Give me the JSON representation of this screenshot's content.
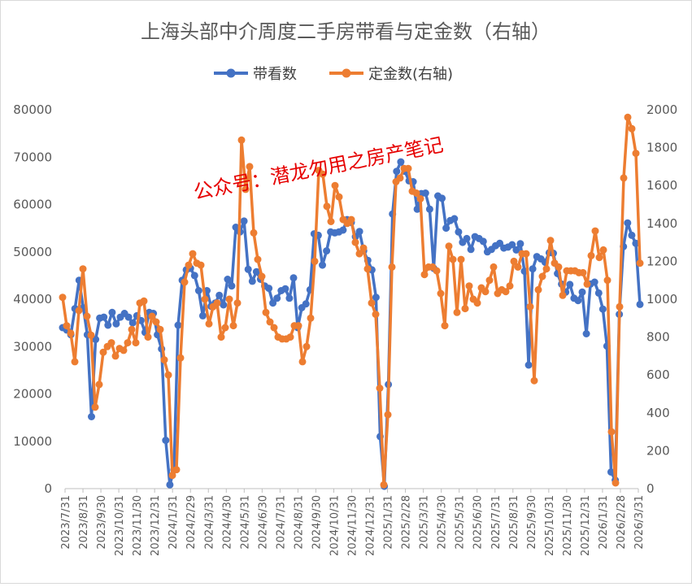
{
  "chart_data": {
    "type": "line",
    "title": "上海头部中介周度二手房带看与定金数（右轴）",
    "watermark": "公众号：潜龙勿用之房产笔记",
    "legend_position": "top",
    "grid": false,
    "y_left": {
      "min": 0,
      "max": 80000,
      "step": 10000
    },
    "y_right": {
      "min": 0,
      "max": 2000,
      "step": 200
    },
    "x_tick_labels": [
      "2023/7/31",
      "2023/8/31",
      "2023/9/30",
      "2023/10/31",
      "2023/11/30",
      "2023/12/31",
      "2024/1/31",
      "2024/2/29",
      "2024/3/31",
      "2024/4/30",
      "2024/5/31",
      "2024/6/30",
      "2024/7/31",
      "2024/8/31",
      "2024/9/30",
      "2024/10/31",
      "2024/11/30",
      "2024/12/31",
      "2025/1/31",
      "2025/2/28",
      "2025/3/31",
      "2025/4/30",
      "2025/5/31",
      "2025/6/30",
      "2025/7/31",
      "2025/8/31",
      "2025/9/30",
      "2025/10/31",
      "2025/11/30",
      "2025/12/31",
      "2026/1/31",
      "2026/2/28",
      "2026/3/31"
    ],
    "series": [
      {
        "name": "带看数",
        "axis": "left",
        "color": "#4472C4",
        "values": [
          34000,
          33500,
          32500,
          38000,
          44000,
          38200,
          32500,
          15200,
          31500,
          36000,
          36200,
          34500,
          37200,
          34800,
          36200,
          37000,
          36200,
          35000,
          36500,
          35500,
          33000,
          37200,
          37000,
          32500,
          29500,
          10200,
          800,
          4000,
          34500,
          44000,
          46200,
          46500,
          45000,
          41800,
          36500,
          41800,
          38500,
          39200,
          40800,
          38800,
          44200,
          42800,
          55200,
          54200,
          56500,
          46300,
          43800,
          45800,
          44200,
          42800,
          42300,
          39200,
          40200,
          41800,
          42200,
          40200,
          44500,
          34000,
          38200,
          39000,
          42000,
          53800,
          53500,
          47200,
          50200,
          54200,
          54000,
          54200,
          54600,
          56800,
          56200,
          53200,
          54300,
          50200,
          48200,
          46200,
          40400,
          11000,
          500,
          22000,
          58000,
          67000,
          69000,
          67000,
          65000,
          64800,
          59000,
          62300,
          62400,
          59000,
          46500,
          61800,
          61300,
          55000,
          56600,
          57000,
          54200,
          52000,
          52800,
          50500,
          53200,
          52800,
          52200,
          50000,
          50500,
          51300,
          51800,
          50800,
          51000,
          51500,
          50400,
          51700,
          45900,
          26100,
          46400,
          49000,
          48500,
          47800,
          49800,
          49700,
          45400,
          43200,
          41500,
          43100,
          40200,
          39700,
          41500,
          32700,
          43200,
          43600,
          41300,
          37900,
          30100,
          3500,
          1800,
          36800,
          51100,
          56100,
          53500,
          51800,
          38900
        ]
      },
      {
        "name": "定金数(右轴)",
        "axis": "right",
        "color": "#ED7D31",
        "values": [
          1010,
          860,
          820,
          670,
          940,
          1160,
          910,
          810,
          430,
          550,
          720,
          750,
          770,
          700,
          740,
          730,
          770,
          840,
          770,
          980,
          990,
          800,
          910,
          880,
          840,
          680,
          600,
          70,
          100,
          690,
          1090,
          1180,
          1240,
          1190,
          1180,
          1000,
          870,
          960,
          980,
          800,
          850,
          1000,
          860,
          980,
          1840,
          1580,
          1700,
          1350,
          1210,
          1120,
          930,
          880,
          850,
          800,
          790,
          790,
          800,
          860,
          860,
          670,
          750,
          900,
          1200,
          1680,
          1660,
          1490,
          1410,
          1600,
          1540,
          1420,
          1400,
          1420,
          1300,
          1240,
          1270,
          1160,
          980,
          920,
          530,
          20,
          390,
          1170,
          1620,
          1640,
          1690,
          1690,
          1570,
          1560,
          1530,
          1130,
          1170,
          1170,
          1150,
          1030,
          860,
          1280,
          1210,
          930,
          1210,
          950,
          1070,
          1000,
          980,
          1060,
          1040,
          1100,
          1170,
          1030,
          1050,
          1040,
          1070,
          1200,
          1170,
          1240,
          1240,
          960,
          570,
          1050,
          1120,
          1160,
          1310,
          1190,
          1170,
          1020,
          1150,
          1150,
          1150,
          1140,
          1140,
          1080,
          1230,
          1360,
          1220,
          1260,
          1100,
          300,
          30,
          960,
          1640,
          1960,
          1900,
          1770,
          1190
        ]
      }
    ]
  }
}
